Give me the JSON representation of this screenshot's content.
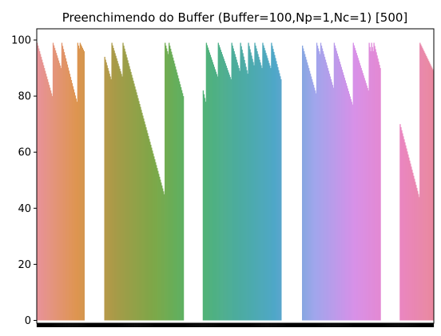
{
  "chart_data": {
    "type": "bar",
    "title": "Preenchimendo do Buffer (Buffer=100,Np=1,Nc=1) [500]",
    "xlabel": "",
    "ylabel": "",
    "ylim": [
      -1,
      104
    ],
    "xlim": [
      0,
      500
    ],
    "yticks": [
      0,
      20,
      40,
      60,
      80,
      100
    ],
    "grid": false,
    "legend": "none",
    "n_bars": 500,
    "palette": [
      "#e8939a",
      "#de9550",
      "#a69b48",
      "#7aa848",
      "#52b46e",
      "#4cac9c",
      "#4fa7c8",
      "#a0a6ec",
      "#d790e8",
      "#ea86c8",
      "#e9889e"
    ],
    "segments": [
      {
        "start": 0,
        "end": 20,
        "from": 99,
        "to": 80
      },
      {
        "start": 20,
        "end": 31,
        "from": 99,
        "to": 90
      },
      {
        "start": 31,
        "end": 51,
        "from": 99,
        "to": 78
      },
      {
        "start": 51,
        "end": 54,
        "from": 99,
        "to": 97
      },
      {
        "start": 54,
        "end": 60,
        "from": 99,
        "to": 96
      },
      {
        "start": 60,
        "end": 85,
        "from": 0,
        "to": 0
      },
      {
        "start": 85,
        "end": 94,
        "from": 94,
        "to": 86
      },
      {
        "start": 94,
        "end": 108,
        "from": 99,
        "to": 87
      },
      {
        "start": 108,
        "end": 161,
        "from": 99,
        "to": 45
      },
      {
        "start": 161,
        "end": 166,
        "from": 99,
        "to": 95
      },
      {
        "start": 166,
        "end": 185,
        "from": 99,
        "to": 80
      },
      {
        "start": 185,
        "end": 209,
        "from": 0,
        "to": 0
      },
      {
        "start": 209,
        "end": 213,
        "from": 82,
        "to": 78
      },
      {
        "start": 213,
        "end": 228,
        "from": 99,
        "to": 87
      },
      {
        "start": 228,
        "end": 245,
        "from": 99,
        "to": 86
      },
      {
        "start": 245,
        "end": 256,
        "from": 99,
        "to": 89
      },
      {
        "start": 256,
        "end": 266,
        "from": 99,
        "to": 88
      },
      {
        "start": 266,
        "end": 274,
        "from": 99,
        "to": 91
      },
      {
        "start": 274,
        "end": 284,
        "from": 99,
        "to": 90
      },
      {
        "start": 284,
        "end": 295,
        "from": 99,
        "to": 90
      },
      {
        "start": 295,
        "end": 308,
        "from": 99,
        "to": 86
      },
      {
        "start": 308,
        "end": 334,
        "from": 0,
        "to": 0
      },
      {
        "start": 334,
        "end": 352,
        "from": 98,
        "to": 81
      },
      {
        "start": 352,
        "end": 357,
        "from": 99,
        "to": 95
      },
      {
        "start": 357,
        "end": 374,
        "from": 99,
        "to": 83
      },
      {
        "start": 374,
        "end": 398,
        "from": 99,
        "to": 77
      },
      {
        "start": 398,
        "end": 418,
        "from": 99,
        "to": 82
      },
      {
        "start": 418,
        "end": 421,
        "from": 99,
        "to": 96
      },
      {
        "start": 421,
        "end": 424,
        "from": 99,
        "to": 96
      },
      {
        "start": 424,
        "end": 433,
        "from": 99,
        "to": 90
      },
      {
        "start": 433,
        "end": 457,
        "from": 0,
        "to": 0
      },
      {
        "start": 457,
        "end": 482,
        "from": 70,
        "to": 44
      },
      {
        "start": 482,
        "end": 500,
        "from": 99,
        "to": 89
      }
    ]
  }
}
